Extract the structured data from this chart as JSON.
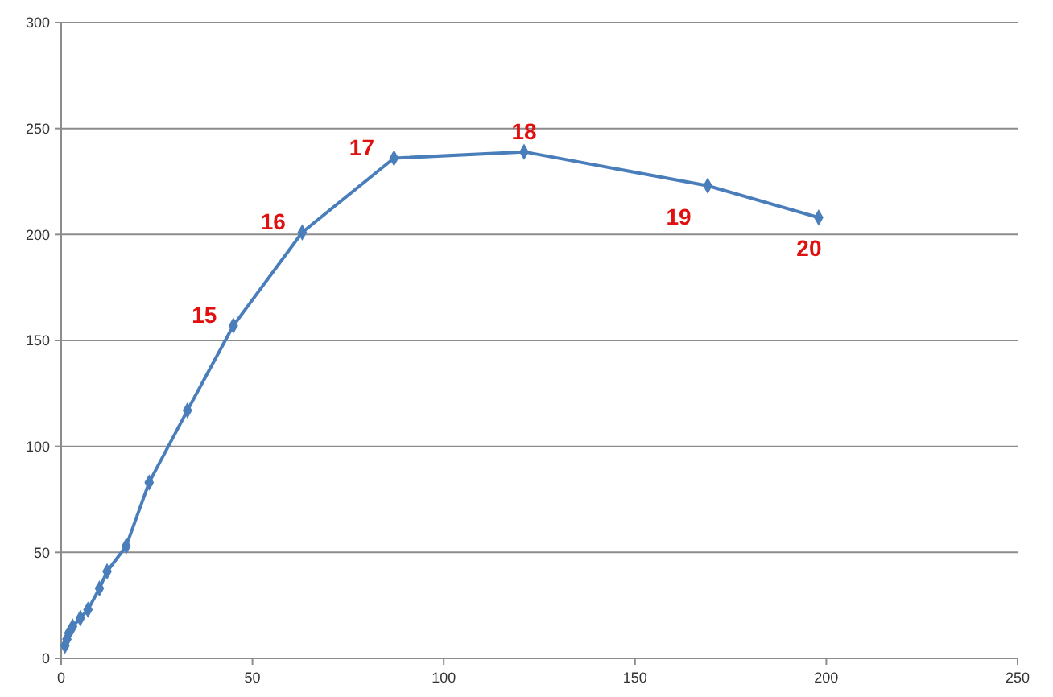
{
  "chart_data": {
    "type": "line",
    "x": [
      1,
      1.5,
      2,
      3,
      5,
      7,
      10,
      12,
      17,
      23,
      33,
      45,
      63,
      87,
      121,
      169,
      198
    ],
    "series": [
      {
        "color": "#4a7ebb",
        "values": [
          6,
          9,
          12,
          15,
          19,
          23,
          33,
          41,
          53,
          83,
          117,
          157,
          201,
          236,
          239,
          223,
          208
        ]
      }
    ],
    "xlim": [
      0,
      250
    ],
    "xticks": [
      0,
      50,
      100,
      150,
      200,
      250
    ],
    "ylim": [
      0,
      300
    ],
    "yticks": [
      0,
      50,
      100,
      150,
      200,
      250,
      300
    ],
    "grid": "y",
    "marker": "diamond",
    "line_style": "solid",
    "annotations": [
      {
        "text": "15",
        "x": 45,
        "y": 157
      },
      {
        "text": "16",
        "x": 63,
        "y": 201
      },
      {
        "text": "17",
        "x": 87,
        "y": 236
      },
      {
        "text": "18",
        "x": 121,
        "y": 239
      },
      {
        "text": "19",
        "x": 169,
        "y": 223
      },
      {
        "text": "20",
        "x": 198,
        "y": 208
      }
    ]
  }
}
